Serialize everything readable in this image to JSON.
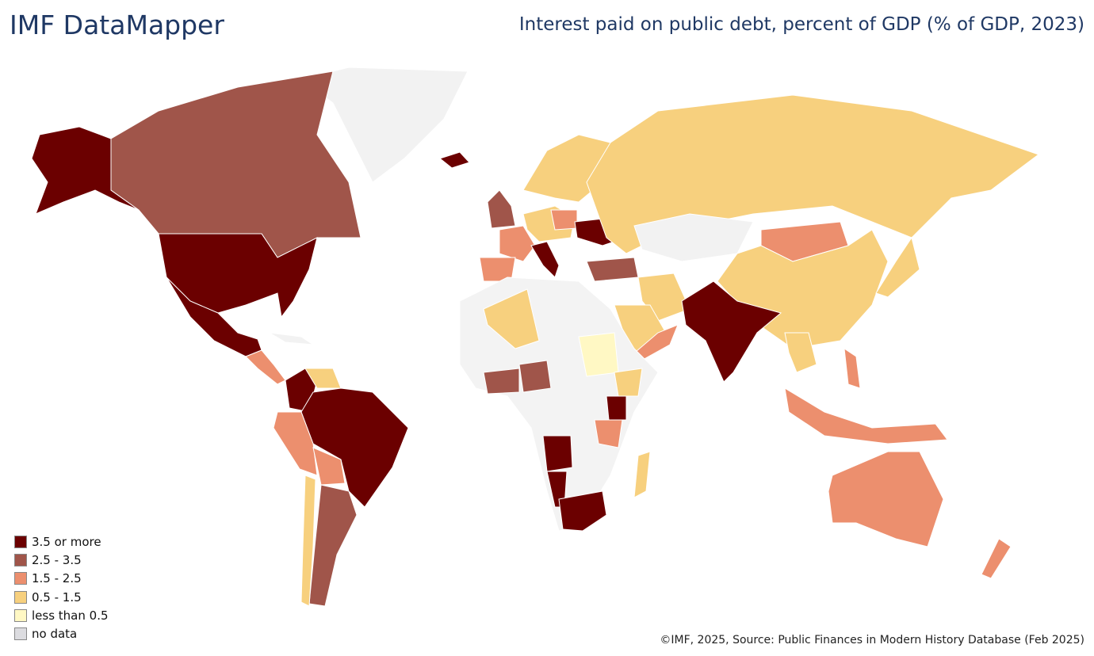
{
  "header": {
    "brand": "IMF DataMapper",
    "title": "Interest paid on public debt, percent of GDP (% of GDP, 2023)"
  },
  "legend": {
    "items": [
      {
        "label": "3.5 or more",
        "color": "#6b0000"
      },
      {
        "label": "2.5 - 3.5",
        "color": "#a0554a"
      },
      {
        "label": "1.5 - 2.5",
        "color": "#ec8f6e"
      },
      {
        "label": "0.5 - 1.5",
        "color": "#f7d07e"
      },
      {
        "label": "less than 0.5",
        "color": "#fff8c4"
      },
      {
        "label": "no data",
        "color": "#dcdce0"
      }
    ]
  },
  "footer": {
    "source": "©IMF, 2025, Source: Public Finances in Modern History Database (Feb 2025)"
  }
}
